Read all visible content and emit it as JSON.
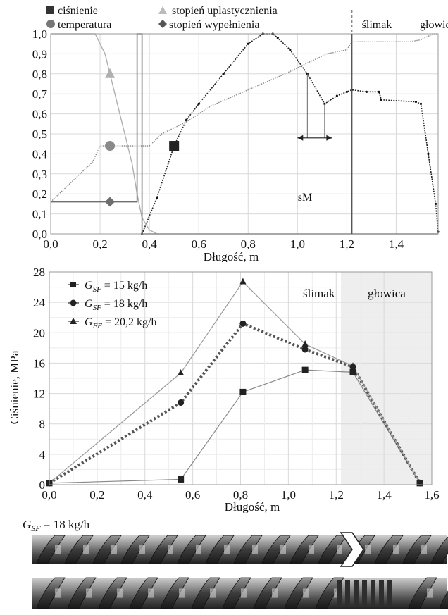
{
  "chart_data": [
    {
      "type": "line",
      "xlabel": "Długość, m",
      "ylabel": "",
      "xlim": [
        0,
        1.57
      ],
      "ylim": [
        0,
        1.0
      ],
      "xticks": [
        "0,0",
        "0,2",
        "0,4",
        "0,6",
        "0,8",
        "1,0",
        "1,2",
        "1,4"
      ],
      "yticks": [
        "0,0",
        "0,1",
        "0,2",
        "0,3",
        "0,4",
        "0,5",
        "0,6",
        "0,7",
        "0,8",
        "0,9",
        "1,0"
      ],
      "grid": true,
      "legend": [
        "ciśnienie",
        "temperatura",
        "stopień uplastycznienia",
        "stopień wypełnienia"
      ],
      "legend_position": "top",
      "annotations": {
        "screw": "ślimak",
        "head": "głowica",
        "sm": "sM",
        "boundary_x": 1.22
      },
      "sm_x": [
        1.0,
        1.14
      ],
      "sm_y": 0.55,
      "series": [
        {
          "name": "ciśnienie",
          "color": "#222222",
          "marker": "square",
          "marker_x": 0.5,
          "x": [
            0.37,
            0.43,
            0.5,
            0.55,
            0.6,
            0.7,
            0.8,
            0.86,
            0.9,
            0.92,
            0.97,
            1.04,
            1.11,
            1.16,
            1.2,
            1.22,
            1.28,
            1.33,
            1.34,
            1.48,
            1.5,
            1.53,
            1.56,
            1.57
          ],
          "y": [
            0.0,
            0.18,
            0.44,
            0.57,
            0.65,
            0.8,
            0.95,
            1.0,
            1.0,
            0.98,
            0.92,
            0.8,
            0.65,
            0.69,
            0.71,
            0.72,
            0.71,
            0.71,
            0.67,
            0.66,
            0.65,
            0.4,
            0.15,
            0.01
          ]
        },
        {
          "name": "temperatura",
          "color": "#8a8a8a",
          "marker": "circle",
          "marker_x": 0.24,
          "x": [
            0.0,
            0.17,
            0.2,
            0.3,
            0.4,
            0.45,
            0.55,
            0.65,
            0.8,
            0.95,
            1.05,
            1.12,
            1.2,
            1.22,
            1.3,
            1.35,
            1.45,
            1.5,
            1.55,
            1.57
          ],
          "y": [
            0.16,
            0.36,
            0.44,
            0.44,
            0.44,
            0.5,
            0.56,
            0.64,
            0.72,
            0.8,
            0.86,
            0.9,
            0.92,
            0.96,
            0.96,
            0.96,
            0.96,
            0.97,
            1.0,
            1.0
          ]
        },
        {
          "name": "stopień uplastycznienia",
          "color": "#b0b0b0",
          "marker": "triangle",
          "marker_x": 0.24,
          "x": [
            0.0,
            0.18,
            0.22,
            0.24,
            0.28,
            0.3,
            0.33,
            0.35,
            0.37,
            0.4,
            0.43
          ],
          "y": [
            1.0,
            1.0,
            0.9,
            0.8,
            0.6,
            0.5,
            0.35,
            0.2,
            0.08,
            0.02,
            0.0
          ]
        },
        {
          "name": "stopień wypełnienia",
          "color": "#6e6e6e",
          "marker": "diamond",
          "marker_x": 0.24,
          "x": [
            0.0,
            0.35,
            0.35,
            0.37,
            0.37,
            1.57
          ],
          "y": [
            0.16,
            0.16,
            1.0,
            1.0,
            0.0,
            0.0
          ]
        }
      ]
    },
    {
      "type": "line",
      "xlabel": "Długość, m",
      "ylabel": "Ciśnienie, MPa",
      "xlim": [
        0,
        1.6
      ],
      "ylim": [
        0,
        28
      ],
      "xticks": [
        "0,0",
        "0,2",
        "0,4",
        "0,6",
        "0,8",
        "1,0",
        "1,2",
        "1,4",
        "1,6"
      ],
      "yticks": [
        "0",
        "4",
        "8",
        "12",
        "16",
        "20",
        "24",
        "28"
      ],
      "grid": true,
      "legend_position": "top-left",
      "shaded_region": [
        1.22,
        1.6
      ],
      "annotations": {
        "screw": "ślimak",
        "head": "głowica"
      },
      "series": [
        {
          "name": "G_SF = 15 kg/h",
          "name_main": "G",
          "name_sub": "SF",
          "name_rest": " = 15 kg/h",
          "color": "#333333",
          "marker": "square",
          "x": [
            0.0,
            0.55,
            0.81,
            1.07,
            1.27,
            1.55
          ],
          "y": [
            0.2,
            0.7,
            12.2,
            15.1,
            14.8,
            0.2
          ]
        },
        {
          "name": "G_SF = 18 kg/h",
          "name_main": "G",
          "name_sub": "SF",
          "name_rest": " = 18 kg/h",
          "color": "#555555",
          "marker": "circle",
          "x": [
            0.0,
            0.55,
            0.81,
            1.07,
            1.27,
            1.55
          ],
          "y": [
            0.2,
            10.8,
            21.2,
            17.8,
            15.5,
            0.2
          ]
        },
        {
          "name": "G_FF = 20,2 kg/h",
          "name_main": "G",
          "name_sub": "FF",
          "name_rest": " = 20,2 kg/h",
          "color": "#444444",
          "marker": "triangle",
          "x": [
            0.0,
            0.55,
            0.81,
            1.07,
            1.27,
            1.55
          ],
          "y": [
            0.2,
            14.7,
            26.7,
            18.5,
            15.6,
            0.2
          ]
        }
      ]
    }
  ],
  "photo": {
    "caption_main": "G",
    "caption_sub": "SF",
    "caption_rest": " = 18 kg/h"
  }
}
